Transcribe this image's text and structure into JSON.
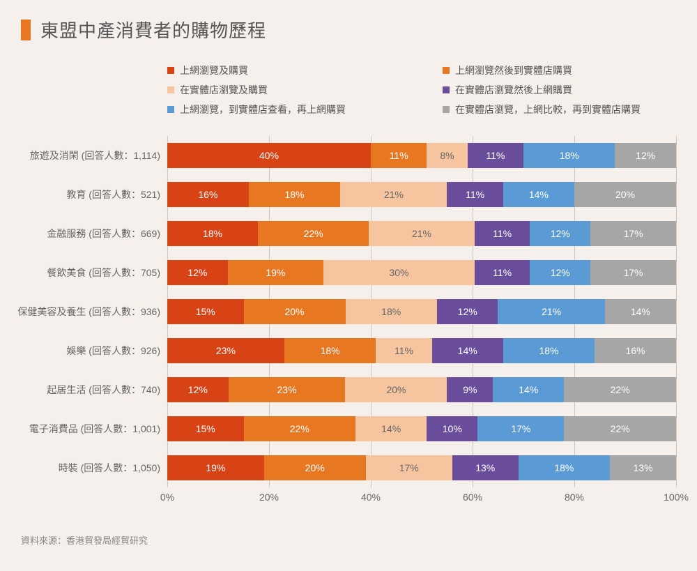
{
  "title": "東盟中產消費者的購物歷程",
  "accent_color": "#e87722",
  "background_color": "#f5f0eb",
  "grid_color": "#ccc7c2",
  "source": "資料來源：香港貿發局經貿研究",
  "legend": [
    {
      "label": "上網瀏覽及購買",
      "color": "#d84315"
    },
    {
      "label": "上網瀏覽然後到實體店購買",
      "color": "#e87722"
    },
    {
      "label": "在實體店瀏覽及購買",
      "color": "#f6c5a0"
    },
    {
      "label": "在實體店瀏覽然後上網購買",
      "color": "#6a4e9c"
    },
    {
      "label": "上網瀏覽，到實體店查看，再上網購買",
      "color": "#5b9bd5"
    },
    {
      "label": "在實體店瀏覽，上網比較，再到實體店購買",
      "color": "#a6a6a6"
    }
  ],
  "axis": {
    "min": 0,
    "max": 100,
    "ticks": [
      0,
      20,
      40,
      60,
      80,
      100
    ],
    "suffix": "%"
  },
  "series_colors": [
    "#d84315",
    "#e87722",
    "#f6c5a0",
    "#6a4e9c",
    "#5b9bd5",
    "#a6a6a6"
  ],
  "dark_text_segments": [
    2
  ],
  "rows": [
    {
      "label": "旅遊及消閑 (回答人數：1,114)",
      "values": [
        40,
        11,
        8,
        11,
        18,
        12
      ]
    },
    {
      "label": "教育 (回答人數：521)",
      "values": [
        16,
        18,
        21,
        11,
        14,
        20
      ]
    },
    {
      "label": "金融服務 (回答人數：669)",
      "values": [
        18,
        22,
        21,
        11,
        12,
        17
      ]
    },
    {
      "label": "餐飲美食 (回答人數：705)",
      "values": [
        12,
        19,
        30,
        11,
        12,
        17
      ]
    },
    {
      "label": "保健美容及養生 (回答人數：936)",
      "values": [
        15,
        20,
        18,
        12,
        21,
        14
      ]
    },
    {
      "label": "娛樂 (回答人數：926)",
      "values": [
        23,
        18,
        11,
        14,
        18,
        16
      ]
    },
    {
      "label": "起居生活 (回答人數：740)",
      "values": [
        12,
        23,
        20,
        9,
        14,
        22
      ]
    },
    {
      "label": "電子消費品 (回答人數：1,001)",
      "values": [
        15,
        22,
        14,
        10,
        17,
        22
      ]
    },
    {
      "label": "時裝 (回答人數：1,050)",
      "values": [
        19,
        20,
        17,
        13,
        18,
        13
      ]
    }
  ]
}
